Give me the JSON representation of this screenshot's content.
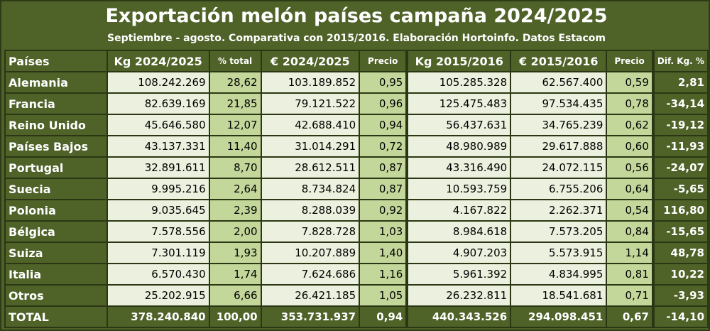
{
  "title": "Exportación melón países campaña 2024/2025",
  "subtitle": "Septiembre - agosto. Comparativa con 2015/2016. Elaboración Hortoinfo. Datos Estacom",
  "headers": [
    "Países",
    "Kg 2024/2025",
    "% total",
    "€ 2024/2025",
    "Precio",
    "Kg 2015/2016",
    "€ 2015/2016",
    "Precio",
    "Dif. Kg. %"
  ],
  "rows": [
    [
      "Alemania",
      "108.242.269",
      "28,62",
      "103.189.852",
      "0,95",
      "105.285.328",
      "62.567.400",
      "0,59",
      "2,81"
    ],
    [
      "Francia",
      "82.639.169",
      "21,85",
      "79.121.522",
      "0,96",
      "125.475.483",
      "97.534.435",
      "0,78",
      "-34,14"
    ],
    [
      "Reino Unido",
      "45.646.580",
      "12,07",
      "42.688.410",
      "0,94",
      "56.437.631",
      "34.765.239",
      "0,62",
      "-19,12"
    ],
    [
      "Países Bajos",
      "43.137.331",
      "11,40",
      "31.014.291",
      "0,72",
      "48.980.989",
      "29.617.888",
      "0,60",
      "-11,93"
    ],
    [
      "Portugal",
      "32.891.611",
      "8,70",
      "28.612.511",
      "0,87",
      "43.316.490",
      "24.072.115",
      "0,56",
      "-24,07"
    ],
    [
      "Suecia",
      "9.995.216",
      "2,64",
      "8.734.824",
      "0,87",
      "10.593.759",
      "6.755.206",
      "0,64",
      "-5,65"
    ],
    [
      "Polonia",
      "9.035.645",
      "2,39",
      "8.288.039",
      "0,92",
      "4.167.822",
      "2.262.371",
      "0,54",
      "116,80"
    ],
    [
      "Bélgica",
      "7.578.556",
      "2,00",
      "7.828.728",
      "1,03",
      "8.984.618",
      "7.573.205",
      "0,84",
      "-15,65"
    ],
    [
      "Suiza",
      "7.301.119",
      "1,93",
      "10.207.889",
      "1,40",
      "4.907.203",
      "5.573.915",
      "1,14",
      "48,78"
    ],
    [
      "Italia",
      "6.570.430",
      "1,74",
      "7.624.686",
      "1,16",
      "5.961.392",
      "4.834.995",
      "0,81",
      "10,22"
    ],
    [
      "Otros",
      "25.202.915",
      "6,66",
      "26.421.185",
      "1,05",
      "26.232.811",
      "18.541.681",
      "0,71",
      "-3,93"
    ]
  ],
  "total": [
    "TOTAL",
    "378.240.840",
    "100,00",
    "353.731.937",
    "0,94",
    "440.343.526",
    "294.098.451",
    "0,67",
    "-14,10"
  ],
  "colors": {
    "frame": "#4f6228",
    "cell_light": "#ebf1de",
    "cell_mid": "#c4d79b",
    "text_header": "#ffffff"
  }
}
